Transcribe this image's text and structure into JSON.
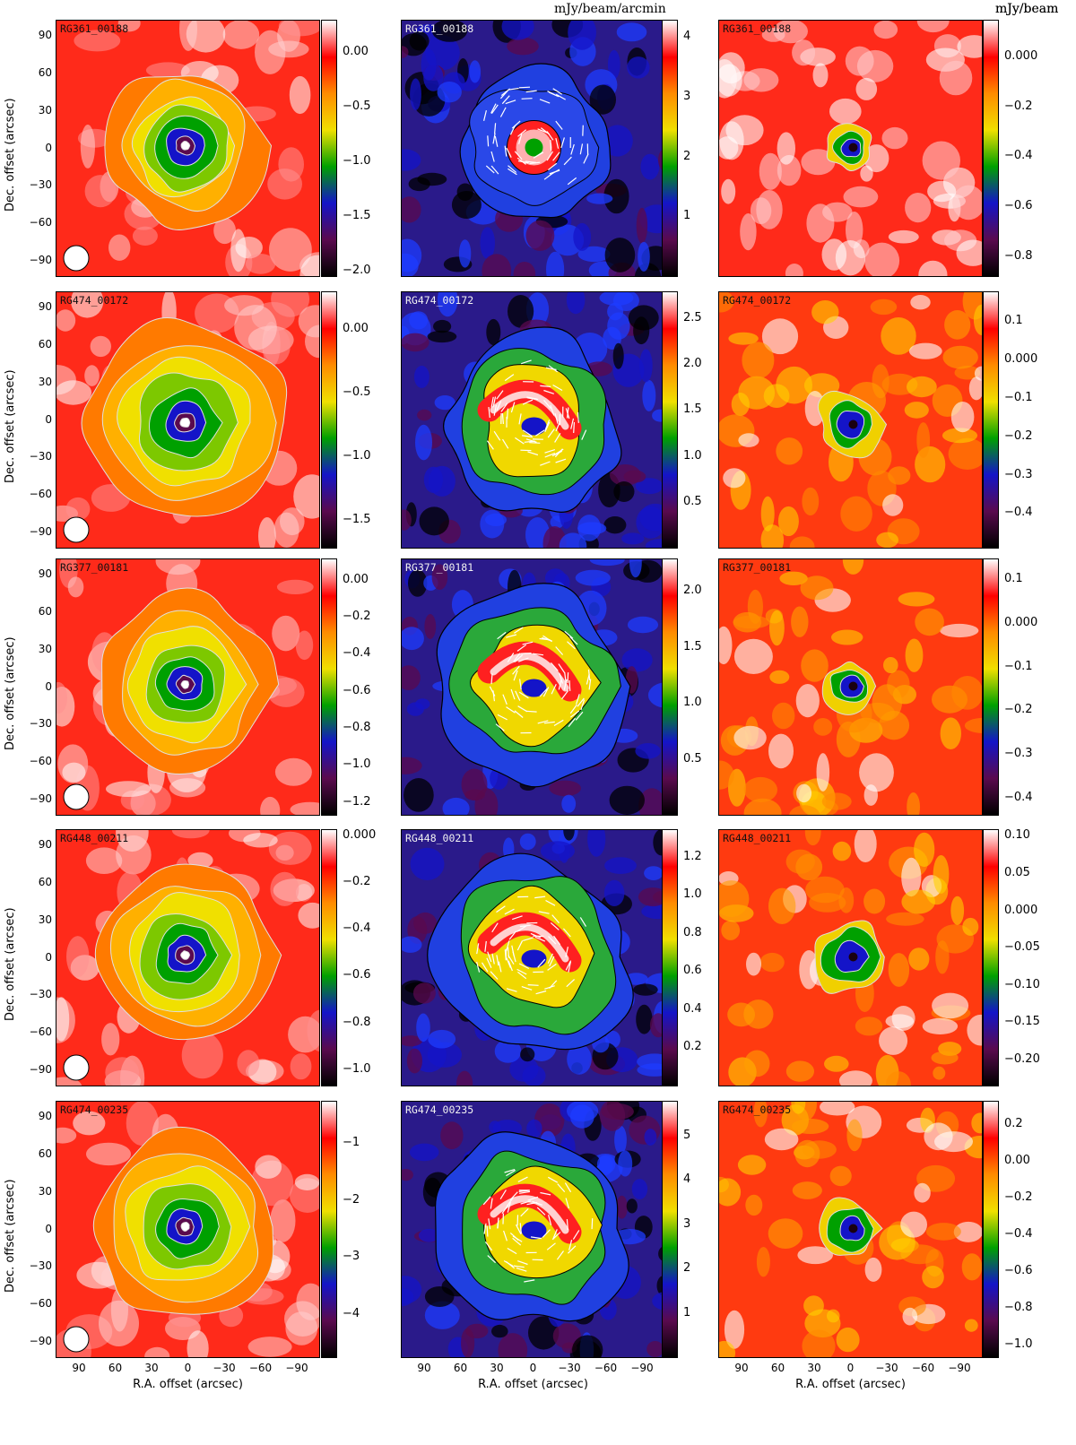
{
  "figure": {
    "unit_labels": [
      "mJy/beam",
      "mJy/beam/arcmin",
      "mJy/beam"
    ],
    "x_axis_label": "R.A. offset (arcsec)",
    "y_axis_label": "Dec. offset (arcsec)",
    "x_ticks": [
      "90",
      "60",
      "30",
      "0",
      "−30",
      "−60",
      "−90"
    ],
    "y_ticks": [
      "90",
      "60",
      "30",
      "0",
      "−30",
      "−60",
      "−90"
    ],
    "colormap": [
      "#000000",
      "#5a0a4e",
      "#1414c8",
      "#00a000",
      "#f0e000",
      "#ff8c00",
      "#ff0000",
      "#ffffff"
    ]
  },
  "rows": [
    {
      "name": "RG361_00188",
      "panels": [
        {
          "label": "RG361_00188",
          "colorbar_ticks": [
            "0.00",
            "−0.5",
            "−1.0",
            "−1.5",
            "−2.0"
          ],
          "colorbar_range": [
            -2.05,
            0.3
          ],
          "tick_values": [
            0.0,
            -0.5,
            -1.0,
            -1.5,
            -2.0
          ]
        },
        {
          "label": "RG361_00188",
          "colorbar_ticks": [
            "4",
            "3",
            "2",
            "1"
          ],
          "colorbar_range": [
            0.0,
            4.3
          ],
          "tick_values": [
            4,
            3,
            2,
            1
          ]
        },
        {
          "label": "RG361_00188",
          "colorbar_ticks": [
            "0.000",
            "−0.2",
            "−0.4",
            "−0.6",
            "−0.8"
          ],
          "colorbar_range": [
            -0.88,
            0.15
          ],
          "tick_values": [
            0.0,
            -0.2,
            -0.4,
            -0.6,
            -0.8
          ]
        }
      ]
    },
    {
      "name": "RG474_00172",
      "panels": [
        {
          "label": "RG474_00172",
          "colorbar_ticks": [
            "0.00",
            "−0.5",
            "−1.0",
            "−1.5"
          ],
          "colorbar_range": [
            -1.72,
            0.3
          ],
          "tick_values": [
            0.0,
            -0.5,
            -1.0,
            -1.5
          ]
        },
        {
          "label": "RG474_00172",
          "colorbar_ticks": [
            "2.5",
            "2.0",
            "1.5",
            "1.0",
            "0.5"
          ],
          "colorbar_range": [
            0.0,
            2.8
          ],
          "tick_values": [
            2.5,
            2.0,
            1.5,
            1.0,
            0.5
          ]
        },
        {
          "label": "RG474_00172",
          "colorbar_ticks": [
            "0.1",
            "0.000",
            "−0.1",
            "−0.2",
            "−0.3",
            "−0.4"
          ],
          "colorbar_range": [
            -0.49,
            0.18
          ],
          "tick_values": [
            0.1,
            0.0,
            -0.1,
            -0.2,
            -0.3,
            -0.4
          ]
        }
      ]
    },
    {
      "name": "RG377_00181",
      "panels": [
        {
          "label": "RG377_00181",
          "colorbar_ticks": [
            "0.00",
            "−0.2",
            "−0.4",
            "−0.6",
            "−0.8",
            "−1.0",
            "−1.2"
          ],
          "colorbar_range": [
            -1.27,
            0.12
          ],
          "tick_values": [
            0.0,
            -0.2,
            -0.4,
            -0.6,
            -0.8,
            -1.0,
            -1.2
          ]
        },
        {
          "label": "RG377_00181",
          "colorbar_ticks": [
            "2.0",
            "1.5",
            "1.0",
            "0.5"
          ],
          "colorbar_range": [
            0.0,
            2.3
          ],
          "tick_values": [
            2.0,
            1.5,
            1.0,
            0.5
          ]
        },
        {
          "label": "RG377_00181",
          "colorbar_ticks": [
            "0.1",
            "0.000",
            "−0.1",
            "−0.2",
            "−0.3",
            "−0.4"
          ],
          "colorbar_range": [
            -0.44,
            0.15
          ],
          "tick_values": [
            0.1,
            0.0,
            -0.1,
            -0.2,
            -0.3,
            -0.4
          ]
        }
      ]
    },
    {
      "name": "RG448_00211",
      "panels": [
        {
          "label": "RG448_00211",
          "colorbar_ticks": [
            "0.000",
            "−0.2",
            "−0.4",
            "−0.6",
            "−0.8",
            "−1.0"
          ],
          "colorbar_range": [
            -1.07,
            0.03
          ],
          "tick_values": [
            0.0,
            -0.2,
            -0.4,
            -0.6,
            -0.8,
            -1.0
          ]
        },
        {
          "label": "RG448_00211",
          "colorbar_ticks": [
            "1.2",
            "1.0",
            "0.8",
            "0.6",
            "0.4",
            "0.2"
          ],
          "colorbar_range": [
            0.0,
            1.35
          ],
          "tick_values": [
            1.2,
            1.0,
            0.8,
            0.6,
            0.4,
            0.2
          ]
        },
        {
          "label": "RG448_00211",
          "colorbar_ticks": [
            "0.10",
            "0.05",
            "0.000",
            "−0.05",
            "−0.10",
            "−0.15",
            "−0.20"
          ],
          "colorbar_range": [
            -0.235,
            0.11
          ],
          "tick_values": [
            0.1,
            0.05,
            0.0,
            -0.05,
            -0.1,
            -0.15,
            -0.2
          ]
        }
      ]
    },
    {
      "name": "RG474_00235",
      "panels": [
        {
          "label": "RG474_00235",
          "colorbar_ticks": [
            "−1",
            "−2",
            "−3",
            "−4"
          ],
          "colorbar_range": [
            -4.75,
            -0.25
          ],
          "tick_values": [
            -1,
            -2,
            -3,
            -4
          ]
        },
        {
          "label": "RG474_00235",
          "colorbar_ticks": [
            "5",
            "4",
            "3",
            "2",
            "1"
          ],
          "colorbar_range": [
            0.0,
            5.8
          ],
          "tick_values": [
            5,
            4,
            3,
            2,
            1
          ]
        },
        {
          "label": "RG474_00235",
          "colorbar_ticks": [
            "0.2",
            "0.00",
            "−0.2",
            "−0.4",
            "−0.6",
            "−0.8",
            "−1.0"
          ],
          "colorbar_range": [
            -1.07,
            0.33
          ],
          "tick_values": [
            0.2,
            0.0,
            -0.2,
            -0.4,
            -0.6,
            -0.8,
            -1.0
          ]
        }
      ]
    }
  ]
}
